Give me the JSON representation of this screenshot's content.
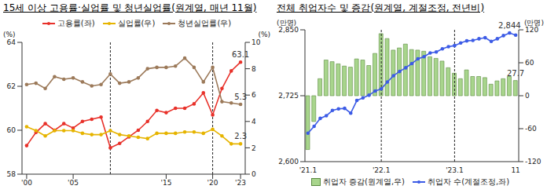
{
  "chart_data": [
    {
      "type": "line",
      "title": "15세 이상 고용률·실업률 및 청년실업률(원계열, 매년 11월)",
      "x": [
        2000,
        2001,
        2002,
        2003,
        2004,
        2005,
        2006,
        2007,
        2008,
        2009,
        2010,
        2011,
        2012,
        2013,
        2014,
        2015,
        2016,
        2017,
        2018,
        2019,
        2020,
        2021,
        2022,
        2023
      ],
      "xlim": [
        1999.5,
        2023.5
      ],
      "xticks": [
        {
          "value": 2000,
          "label": "'00"
        },
        {
          "value": 2005,
          "label": "'05"
        },
        {
          "value": 2015,
          "label": "'15"
        },
        {
          "value": 2020,
          "label": "'20"
        },
        {
          "value": 2023,
          "label": "'23"
        }
      ],
      "ylim": [
        58,
        64
      ],
      "yticks": [
        58,
        60,
        62,
        64
      ],
      "y2lim": [
        0,
        10
      ],
      "y2ticks": [
        0,
        2,
        4,
        6,
        8,
        10
      ],
      "y_label": "(%)",
      "y2_label": "(%)",
      "legend": "top",
      "series": [
        {
          "name": "고용률(좌)",
          "color": "#e8312a",
          "axis": "y",
          "marker": "circle",
          "values": [
            59.3,
            59.9,
            60.3,
            60.0,
            60.3,
            60.1,
            60.4,
            60.5,
            60.6,
            59.2,
            59.4,
            59.7,
            60.0,
            60.4,
            60.9,
            60.8,
            61.0,
            61.0,
            61.2,
            61.7,
            60.7,
            61.9,
            62.7,
            63.1
          ]
        },
        {
          "name": "실업률(우)",
          "color": "#e6b400",
          "axis": "y2",
          "marker": "circle",
          "values": [
            3.6,
            3.3,
            2.9,
            3.3,
            3.3,
            3.3,
            3.1,
            3.0,
            3.0,
            3.3,
            3.0,
            2.9,
            2.8,
            2.7,
            3.1,
            3.1,
            3.1,
            3.2,
            3.2,
            3.1,
            3.4,
            2.9,
            2.3,
            2.3
          ]
        },
        {
          "name": "청년실업률(우)",
          "color": "#9c7a5a",
          "axis": "y2",
          "marker": "circle",
          "values": [
            6.8,
            6.9,
            6.5,
            7.4,
            7.2,
            7.3,
            7.0,
            6.7,
            6.8,
            7.6,
            6.9,
            7.0,
            7.3,
            8.0,
            8.1,
            8.1,
            8.2,
            8.8,
            8.1,
            7.0,
            8.1,
            5.5,
            5.4,
            5.3
          ]
        }
      ],
      "annotations": [
        {
          "text": "63.1",
          "x": 2023,
          "y": 63.1,
          "axis": "y",
          "color": "#333333"
        },
        {
          "text": "5.3",
          "x": 2023,
          "y": 5.3,
          "axis": "y2",
          "color": "#333333"
        },
        {
          "text": "2.3",
          "x": 2023,
          "y": 2.3,
          "axis": "y2",
          "color": "#333333"
        }
      ],
      "vlines": [
        2009,
        2020
      ]
    },
    {
      "type": "bar",
      "title": "전체 취업자수 및 증감(원계열, 계절조정, 전년비)",
      "categories": [
        "'21.1",
        null,
        null,
        null,
        null,
        null,
        null,
        null,
        null,
        null,
        null,
        null,
        "'22.1",
        null,
        null,
        null,
        null,
        null,
        null,
        null,
        null,
        null,
        null,
        null,
        "'23.1",
        null,
        null,
        null,
        null,
        null,
        null,
        null,
        null,
        null,
        "11"
      ],
      "ylim": [
        2600,
        2850
      ],
      "yticks": [
        {
          "value": 2600,
          "label": "2,600"
        },
        {
          "value": 2725,
          "label": "2,725"
        },
        {
          "value": 2850,
          "label": "2,850"
        }
      ],
      "y2lim": [
        -120,
        120
      ],
      "y2ticks": [
        -120,
        -60,
        0,
        60,
        120
      ],
      "y_label": "(만명)",
      "y2_label": "(만명)",
      "legend": "bottom",
      "series": [
        {
          "name": "취업자 증감(원계열,우)",
          "type": "bar",
          "color": "#a8d58c",
          "axis": "y2",
          "values": [
            -98,
            -47,
            31,
            65,
            62,
            58,
            54,
            52,
            67,
            65,
            55,
            77,
            113,
            104,
            83,
            87,
            94,
            84,
            83,
            81,
            71,
            68,
            63,
            51,
            41,
            31,
            47,
            35,
            35,
            33,
            21,
            27,
            31,
            35,
            27.7
          ]
        },
        {
          "name": "취업자 수(계절조정,좌)",
          "type": "line",
          "color": "#3d5ce6",
          "axis": "y",
          "marker": "circle",
          "values": [
            2654,
            2667,
            2682,
            2687,
            2697,
            2700,
            2701,
            2692,
            2716,
            2721,
            2726,
            2734,
            2738,
            2751,
            2763,
            2771,
            2778,
            2786,
            2795,
            2799,
            2806,
            2808,
            2814,
            2818,
            2820,
            2825,
            2829,
            2830,
            2833,
            2835,
            2828,
            2833,
            2839,
            2844,
            2840
          ]
        }
      ],
      "annotations": [
        {
          "text": "2,844",
          "position": 33,
          "y": 2844,
          "axis": "y",
          "color": "#333333"
        },
        {
          "text": "27.7",
          "position": 34,
          "y": 27.7,
          "axis": "y2",
          "color": "#333333"
        }
      ],
      "vlines": [
        "'22.1",
        "'23.1"
      ]
    }
  ]
}
